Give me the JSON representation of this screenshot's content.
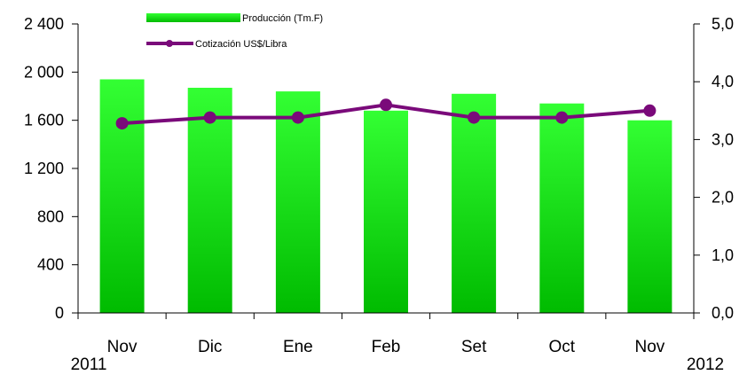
{
  "chart_data": {
    "type": "bar",
    "categories": [
      "Nov",
      "Dic",
      "Ene",
      "Feb",
      "Set",
      "Oct",
      "Nov"
    ],
    "year_labels": {
      "start": "2011",
      "end": "2012"
    },
    "series": [
      {
        "name": "Producción (Tm.F)",
        "type": "bar",
        "axis": "left",
        "values": [
          1940,
          1870,
          1840,
          1680,
          1820,
          1740,
          1600
        ]
      },
      {
        "name": "Cotización US$/Libra",
        "type": "line",
        "axis": "right",
        "values": [
          3.28,
          3.38,
          3.38,
          3.6,
          3.38,
          3.38,
          3.5
        ]
      }
    ],
    "y_left": {
      "range": [
        0,
        2400
      ],
      "ticks": [
        0,
        400,
        800,
        1200,
        1600,
        2000,
        2400
      ],
      "tick_labels": [
        "0",
        "400",
        "800",
        "1 200",
        "1 600",
        "2 000",
        "2 400"
      ]
    },
    "y_right": {
      "range": [
        0,
        5
      ],
      "ticks": [
        0,
        1,
        2,
        3,
        4,
        5
      ],
      "tick_labels": [
        "0,0",
        "1,0",
        "2,0",
        "3,0",
        "4,0",
        "5,0"
      ]
    },
    "legend_placement": "top-left",
    "grid": false,
    "colors": {
      "bar_light": "#33ff33",
      "bar_dark": "#00bb00",
      "line": "#7a0a7a",
      "axis": "#000000"
    }
  }
}
